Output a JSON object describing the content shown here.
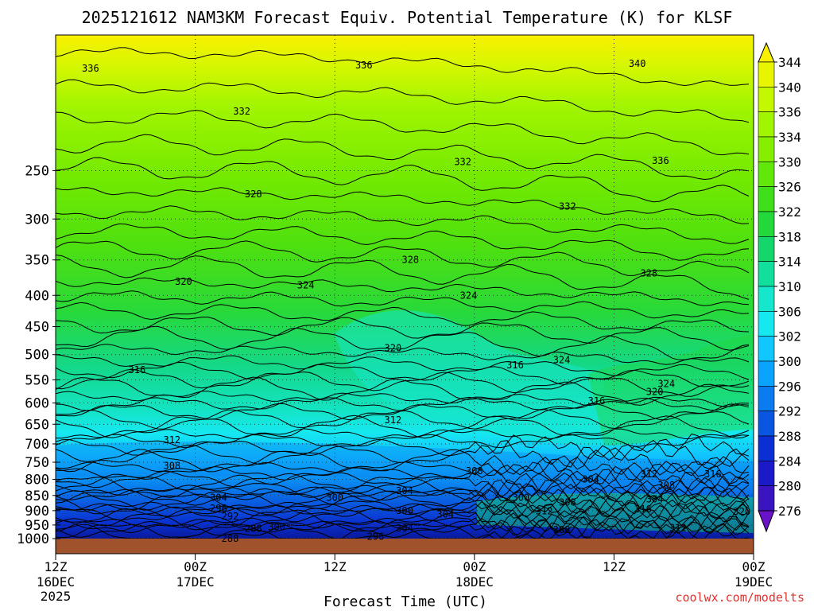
{
  "chart_data": {
    "type": "heatmap",
    "title": "2025121612 NAM3KM Forecast Equiv. Potential Temperature (K) for KLSF",
    "xlabel": "Forecast Time (UTC)",
    "ylabel": "",
    "credit": "coolwx.com/modelts",
    "y_ticks": [
      "250",
      "300",
      "350",
      "400",
      "450",
      "500",
      "550",
      "600",
      "650",
      "700",
      "750",
      "800",
      "850",
      "900",
      "950",
      "1000"
    ],
    "y_tick_values": [
      250,
      300,
      350,
      400,
      450,
      500,
      550,
      600,
      650,
      700,
      750,
      800,
      850,
      900,
      950,
      1000
    ],
    "ylim": [
      150,
      1000
    ],
    "y_scale": "log",
    "x_ticks": [
      {
        "hour": "12Z",
        "date": "16DEC",
        "year": "2025"
      },
      {
        "hour": "00Z",
        "date": "17DEC",
        "year": ""
      },
      {
        "hour": "12Z",
        "date": "",
        "year": ""
      },
      {
        "hour": "00Z",
        "date": "18DEC",
        "year": ""
      },
      {
        "hour": "12Z",
        "date": "",
        "year": ""
      },
      {
        "hour": "00Z",
        "date": "19DEC",
        "year": ""
      }
    ],
    "x_tick_hours": [
      0,
      12,
      24,
      36,
      48,
      60
    ],
    "xlim": [
      0,
      60
    ],
    "colorbar_levels": [
      "344",
      "340",
      "336",
      "334",
      "330",
      "326",
      "322",
      "318",
      "314",
      "310",
      "306",
      "302",
      "300",
      "296",
      "292",
      "288",
      "284",
      "280",
      "276"
    ],
    "colorbar_colors": [
      "#f9f000",
      "#e9f500",
      "#c4f700",
      "#a2f500",
      "#86ef00",
      "#62e70a",
      "#3fdf1a",
      "#22d83a",
      "#14d66a",
      "#12df9c",
      "#16e6cc",
      "#16e8f0",
      "#10c8ff",
      "#0aa4ff",
      "#0a7cf0",
      "#0b56e0",
      "#0a2fd2",
      "#1a1ac8",
      "#3a14c0",
      "#6a12c8"
    ],
    "contour_labels": [
      {
        "text": "336",
        "t": 3.0,
        "p": 170
      },
      {
        "text": "336",
        "t": 26.5,
        "p": 168
      },
      {
        "text": "340",
        "t": 50.0,
        "p": 167
      },
      {
        "text": "332",
        "t": 16.0,
        "p": 200
      },
      {
        "text": "332",
        "t": 35.0,
        "p": 242
      },
      {
        "text": "336",
        "t": 52.0,
        "p": 241
      },
      {
        "text": "328",
        "t": 17.0,
        "p": 273
      },
      {
        "text": "332",
        "t": 44.0,
        "p": 286
      },
      {
        "text": "328",
        "t": 30.5,
        "p": 350
      },
      {
        "text": "328",
        "t": 51.0,
        "p": 368
      },
      {
        "text": "320",
        "t": 11.0,
        "p": 380
      },
      {
        "text": "324",
        "t": 21.5,
        "p": 385
      },
      {
        "text": "324",
        "t": 35.5,
        "p": 400
      },
      {
        "text": "316",
        "t": 7.0,
        "p": 530
      },
      {
        "text": "320",
        "t": 29.0,
        "p": 488
      },
      {
        "text": "316",
        "t": 39.5,
        "p": 520
      },
      {
        "text": "324",
        "t": 43.5,
        "p": 510
      },
      {
        "text": "324",
        "t": 52.5,
        "p": 558
      },
      {
        "text": "320",
        "t": 51.5,
        "p": 575
      },
      {
        "text": "316",
        "t": 46.5,
        "p": 595
      },
      {
        "text": "312",
        "t": 29.0,
        "p": 640
      },
      {
        "text": "312",
        "t": 10.0,
        "p": 690
      },
      {
        "text": "308",
        "t": 10.0,
        "p": 760
      },
      {
        "text": "308",
        "t": 36.0,
        "p": 775
      },
      {
        "text": "304",
        "t": 46.0,
        "p": 800
      },
      {
        "text": "312",
        "t": 51.0,
        "p": 785
      },
      {
        "text": "316",
        "t": 56.5,
        "p": 785
      },
      {
        "text": "308",
        "t": 52.5,
        "p": 818
      },
      {
        "text": "304",
        "t": 14.0,
        "p": 857
      },
      {
        "text": "300",
        "t": 24.0,
        "p": 857
      },
      {
        "text": "304",
        "t": 30.0,
        "p": 835
      },
      {
        "text": "300",
        "t": 40.0,
        "p": 857
      },
      {
        "text": "308",
        "t": 44.0,
        "p": 872
      },
      {
        "text": "304",
        "t": 51.5,
        "p": 862
      },
      {
        "text": "296",
        "t": 14.0,
        "p": 893
      },
      {
        "text": "300",
        "t": 30.0,
        "p": 900
      },
      {
        "text": "304",
        "t": 33.5,
        "p": 912
      },
      {
        "text": "312",
        "t": 42.0,
        "p": 902
      },
      {
        "text": "316",
        "t": 50.5,
        "p": 895
      },
      {
        "text": "320",
        "t": 59.0,
        "p": 903
      },
      {
        "text": "292",
        "t": 15.0,
        "p": 920
      },
      {
        "text": "288",
        "t": 17.0,
        "p": 963
      },
      {
        "text": "300",
        "t": 19.0,
        "p": 957
      },
      {
        "text": "304",
        "t": 30.0,
        "p": 962
      },
      {
        "text": "308",
        "t": 43.5,
        "p": 968
      },
      {
        "text": "312",
        "t": 53.5,
        "p": 960
      },
      {
        "text": "296",
        "t": 27.5,
        "p": 993
      },
      {
        "text": "288",
        "t": 15.0,
        "p": 1000
      }
    ]
  }
}
